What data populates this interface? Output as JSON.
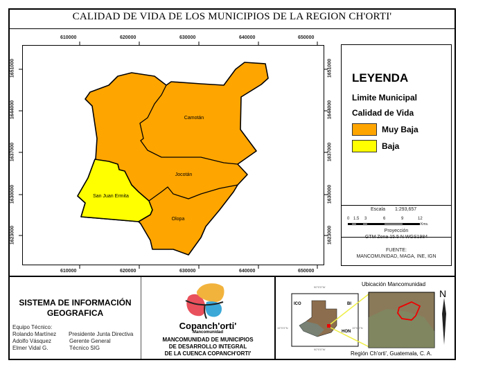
{
  "title": "CALIDAD DE VIDA DE LOS MUNICIPIOS DE LA REGION CH'ORTI'",
  "map": {
    "x_ticks": [
      "610000",
      "620000",
      "630000",
      "640000",
      "650000"
    ],
    "y_ticks": [
      "1651000",
      "1644000",
      "1637000",
      "1630000",
      "1623000"
    ],
    "municipalities": [
      {
        "name": "Camotán",
        "class": "Muy Baja"
      },
      {
        "name": "Jocotán",
        "class": "Muy Baja"
      },
      {
        "name": "Olopa",
        "class": "Muy Baja"
      },
      {
        "name": "San Juan Ermita",
        "class": "Baja"
      }
    ],
    "colors": {
      "muy_baja": "#FFA500",
      "baja": "#FFFF00"
    }
  },
  "legend": {
    "title": "LEYENDA",
    "limite": "Limite Municipal",
    "calidad": "Calidad de Vida",
    "items": [
      {
        "label": "Muy Baja",
        "color": "#FFA500"
      },
      {
        "label": "Baja",
        "color": "#FFFF00"
      }
    ],
    "scale_label": "Escala",
    "scale_value": "1:293,657",
    "scale_ticks": [
      "0",
      "1.5",
      "3",
      "6",
      "9",
      "12"
    ],
    "scale_unit": "Kms.",
    "projection_label": "Proyección",
    "projection_value": "GTM Zona 15.5 N WGS1984",
    "source_label": "FUENTE:",
    "source_value": "MANCOMUNIDAD, MAGA, INE, IGN"
  },
  "footer": {
    "sig_title_1": "SISTEMA DE INFORMACIÓN",
    "sig_title_2": "GEOGRAFICA",
    "team_label": "Equipo Técnico:",
    "team": [
      {
        "name": "Rolando Martínez",
        "role": "Presidente Junta Directiva"
      },
      {
        "name": "Adolfo Vásquez",
        "role": "Gerente General"
      },
      {
        "name": "Elmer Vidal G.",
        "role": "Técnico SIG"
      }
    ],
    "logo_text": "Copanch'orti'",
    "logo_sub": "Mancomunidad",
    "manc_1": "MANCOMUNIDAD DE MUNICIPIOS",
    "manc_2": "DE DESARROLLO INTEGRAL",
    "manc_3": "DE LA CUENCA COPANCH'ORTI'",
    "inset_title": "Ubicación Mancomunidad",
    "inset_caption": "Región Ch'orti', Guatemala, C. A.",
    "inset_labels": {
      "mex": "ICO",
      "hon": "HON",
      "bel": "BI",
      "lon_top": "90°0'0\"W",
      "lon_bottom": "90°0'0\"W",
      "lat": "15°0'0\"N",
      "lat2": "15°0'0\"N"
    },
    "north": "N"
  }
}
